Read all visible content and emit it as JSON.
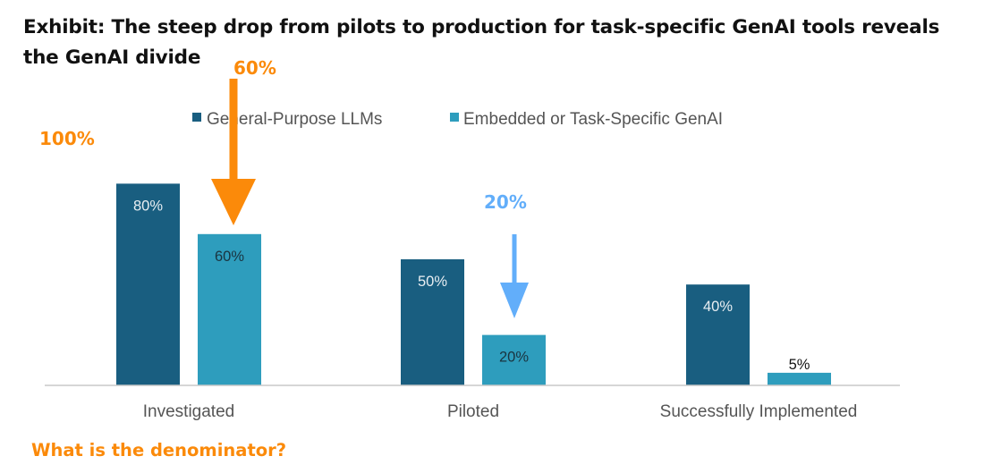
{
  "title": "Exhibit: The steep drop from pilots to production for task-specific GenAI tools reveals the GenAI divide",
  "chart_data": {
    "type": "bar",
    "categories": [
      "Investigated",
      "Piloted",
      "Successfully Implemented"
    ],
    "series": [
      {
        "name": "General-Purpose LLMs",
        "values": [
          80,
          50,
          40
        ],
        "labels": [
          "80%",
          "50%",
          "40%"
        ],
        "color": "#195e80",
        "label_color": "#e8eef2"
      },
      {
        "name": "Embedded or Task-Specific GenAI",
        "values": [
          60,
          20,
          5
        ],
        "labels": [
          "60%",
          "20%",
          "5%"
        ],
        "color": "#2e9dbd",
        "label_color": "#1a3440"
      }
    ],
    "ylim": [
      0,
      100
    ],
    "legend": "top",
    "axis_color": "#c8c8c8"
  },
  "annotations": {
    "label_100": "100%",
    "label_60": "60%",
    "label_20": "20%",
    "question": "What is the denominator?",
    "orange": "#fb8a0a",
    "blue": "#62aefa"
  }
}
